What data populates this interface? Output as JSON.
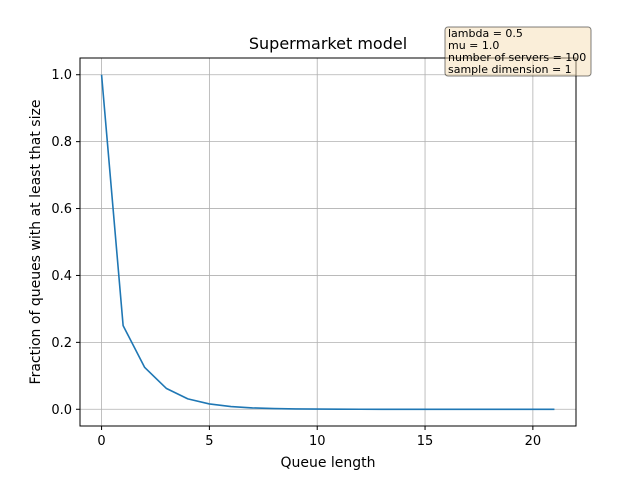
{
  "chart_data": {
    "type": "line",
    "title": "Supermarket model",
    "xlabel": "Queue length",
    "ylabel": "Fraction of queues with at least that size",
    "xlim": [
      -1,
      22
    ],
    "ylim": [
      -0.05,
      1.05
    ],
    "x_ticks": [
      0,
      5,
      10,
      15,
      20
    ],
    "y_ticks": [
      0.0,
      0.2,
      0.4,
      0.6,
      0.8,
      1.0
    ],
    "x_tick_labels": [
      "0",
      "5",
      "10",
      "15",
      "20"
    ],
    "y_tick_labels": [
      "0.0",
      "0.2",
      "0.4",
      "0.6",
      "0.8",
      "1.0"
    ],
    "grid": true,
    "series": [
      {
        "color": "#1f77b4",
        "x": [
          0,
          1,
          2,
          3,
          4,
          5,
          6,
          7,
          8,
          9,
          10,
          11,
          12,
          13,
          14,
          15,
          16,
          17,
          18,
          19,
          20,
          21
        ],
        "y": [
          1.0,
          0.25,
          0.125,
          0.0625,
          0.031,
          0.016,
          0.008,
          0.004,
          0.002,
          0.001,
          0.0005,
          0.0002,
          0.0001,
          0.0,
          0.0,
          0.0,
          0.0,
          0.0,
          0.0,
          0.0,
          0.0,
          0.0
        ]
      }
    ],
    "info_box": {
      "lines": [
        "lambda = 0.5",
        "mu = 1.0",
        "number of servers = 100",
        "sample dimension = 1"
      ],
      "background": "#f5deb3",
      "border": "#000000"
    }
  }
}
